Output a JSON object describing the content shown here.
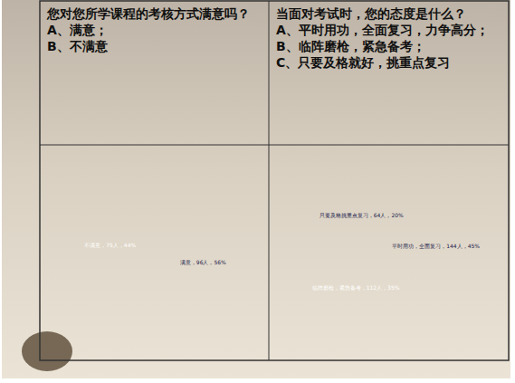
{
  "chart_data": [
    {
      "type": "pie",
      "title": "您对您所学课程的考核方式满意吗？",
      "annotations": [
        "A、满意；",
        "B、不满意"
      ],
      "values": [
        56,
        44
      ],
      "value_labels": [
        "满意，96人，56%",
        "不满意，75人，44%"
      ],
      "colors": [
        "#acdbe3",
        "#2b2f8c"
      ],
      "data_labels": true
    },
    {
      "type": "pie",
      "title": "当面对考试时，您的态度是什么？",
      "annotations": [
        "A、平时用功，全面复习，力争高分；",
        "B、临阵磨枪，紧急备考；",
        "C、只要及格就好，挑重点复习"
      ],
      "values": [
        45,
        35,
        20
      ],
      "value_labels": [
        "平时用功，全面复习，144人，45%",
        "临阵磨枪，紧急备考，112人，35%",
        "只要及格挑重点复习，64人，20%"
      ],
      "colors": [
        "#acdbe3",
        "#2b2f8c",
        "#ffffff"
      ],
      "data_labels": true
    }
  ]
}
